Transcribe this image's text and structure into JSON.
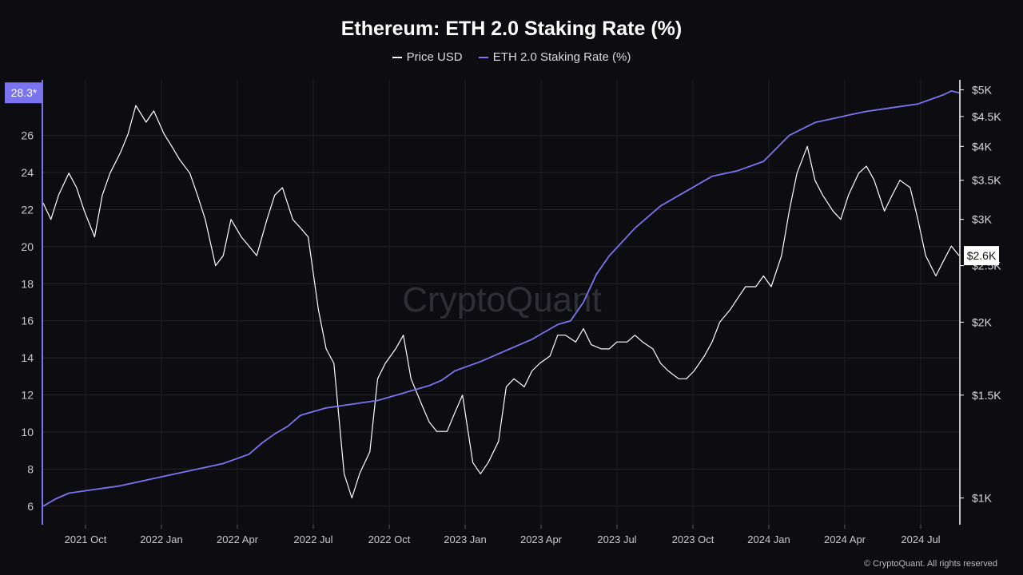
{
  "chart_data": {
    "type": "line",
    "title": "Ethereum: ETH 2.0 Staking Rate (%)",
    "watermark": "CryptoQuant",
    "copyright": "© CryptoQuant. All rights reserved",
    "x_tick_labels": [
      "2021 Oct",
      "2022 Jan",
      "2022 Apr",
      "2022 Jul",
      "2022 Oct",
      "2023 Jan",
      "2023 Apr",
      "2023 Jul",
      "2023 Oct",
      "2024 Jan",
      "2024 Apr",
      "2024 Jul"
    ],
    "x_range": [
      0,
      35.6
    ],
    "left_axis": {
      "label": "ETH 2.0 Staking Rate (%)",
      "ticks": [
        "6",
        "8",
        "10",
        "12",
        "14",
        "16",
        "18",
        "20",
        "22",
        "24",
        "26"
      ],
      "range": [
        5,
        29
      ],
      "current_label": "28.3*",
      "current_value": 28.3
    },
    "right_axis": {
      "label": "Price USD",
      "scale": "log",
      "ticks": [
        "$1K",
        "$1.5K",
        "$2K",
        "$2.5K",
        "$3K",
        "$3.5K",
        "$4K",
        "$4.5K",
        "$5K"
      ],
      "tick_values": [
        1000,
        1500,
        2000,
        2500,
        3000,
        3500,
        4000,
        4500,
        5000
      ],
      "range": [
        900,
        5200
      ],
      "current_label": "$2.6K",
      "current_value": 2600
    },
    "series": [
      {
        "name": "Price USD",
        "axis": "right",
        "color": "#ffffff",
        "x": [
          0,
          0.3,
          0.6,
          1.0,
          1.3,
          1.6,
          2.0,
          2.3,
          2.6,
          3.0,
          3.3,
          3.6,
          4.0,
          4.3,
          4.7,
          5.0,
          5.3,
          5.7,
          6.0,
          6.3,
          6.7,
          7.0,
          7.3,
          7.7,
          8.0,
          8.3,
          8.7,
          9.0,
          9.3,
          9.7,
          10.0,
          10.3,
          10.7,
          11.0,
          11.3,
          11.7,
          12.0,
          12.3,
          12.7,
          13.0,
          13.3,
          13.7,
          14.0,
          14.3,
          14.7,
          15.0,
          15.3,
          15.7,
          16.0,
          16.3,
          16.7,
          17.0,
          17.3,
          17.7,
          18.0,
          18.3,
          18.7,
          19.0,
          19.3,
          19.7,
          20.0,
          20.3,
          20.7,
          21.0,
          21.3,
          21.7,
          22.0,
          22.3,
          22.7,
          23.0,
          23.3,
          23.7,
          24.0,
          24.3,
          24.7,
          25.0,
          25.3,
          25.7,
          26.0,
          26.3,
          26.7,
          27.0,
          27.3,
          27.7,
          28.0,
          28.3,
          28.7,
          29.0,
          29.3,
          29.7,
          30.0,
          30.3,
          30.7,
          31.0,
          31.3,
          31.7,
          32.0,
          32.3,
          32.7,
          33.0,
          33.3,
          33.7,
          34.0,
          34.3,
          34.7,
          35.0,
          35.3,
          35.6
        ],
        "values": [
          3200,
          3000,
          3300,
          3600,
          3400,
          3100,
          2800,
          3300,
          3600,
          3900,
          4200,
          4700,
          4400,
          4600,
          4200,
          4000,
          3800,
          3600,
          3300,
          3000,
          2500,
          2600,
          3000,
          2800,
          2700,
          2600,
          3000,
          3300,
          3400,
          3000,
          2900,
          2800,
          2100,
          1800,
          1700,
          1100,
          1000,
          1100,
          1200,
          1600,
          1700,
          1800,
          1900,
          1600,
          1450,
          1350,
          1300,
          1300,
          1400,
          1500,
          1150,
          1100,
          1150,
          1250,
          1550,
          1600,
          1550,
          1650,
          1700,
          1750,
          1900,
          1900,
          1850,
          1950,
          1830,
          1800,
          1800,
          1850,
          1850,
          1900,
          1850,
          1800,
          1700,
          1650,
          1600,
          1600,
          1650,
          1750,
          1850,
          2000,
          2100,
          2200,
          2300,
          2300,
          2400,
          2300,
          2600,
          3100,
          3600,
          4000,
          3500,
          3300,
          3100,
          3000,
          3300,
          3600,
          3700,
          3500,
          3100,
          3300,
          3500,
          3400,
          3000,
          2600,
          2400,
          2550,
          2700,
          2600
        ]
      },
      {
        "name": "ETH 2.0 Staking Rate (%)",
        "axis": "left",
        "color": "#7b74f0",
        "x": [
          0,
          0.5,
          1,
          2,
          3,
          4,
          5,
          6,
          7,
          8,
          8.5,
          9,
          9.5,
          10,
          10.5,
          11,
          12,
          13,
          14,
          15,
          15.5,
          16,
          17,
          18,
          19,
          20,
          20.5,
          21,
          21.5,
          22,
          23,
          24,
          25,
          26,
          27,
          28,
          29,
          30,
          31,
          31.3,
          32,
          33,
          34,
          35,
          35.3,
          35.6
        ],
        "values": [
          6.0,
          6.4,
          6.7,
          6.9,
          7.1,
          7.4,
          7.7,
          8.0,
          8.3,
          8.8,
          9.4,
          9.9,
          10.3,
          10.9,
          11.1,
          11.3,
          11.5,
          11.7,
          12.1,
          12.5,
          12.8,
          13.3,
          13.8,
          14.4,
          15.0,
          15.8,
          16.0,
          17.0,
          18.5,
          19.5,
          21.0,
          22.2,
          23.0,
          23.8,
          24.1,
          24.6,
          26.0,
          26.7,
          27.0,
          27.1,
          27.3,
          27.5,
          27.7,
          28.2,
          28.4,
          28.3
        ]
      }
    ]
  }
}
